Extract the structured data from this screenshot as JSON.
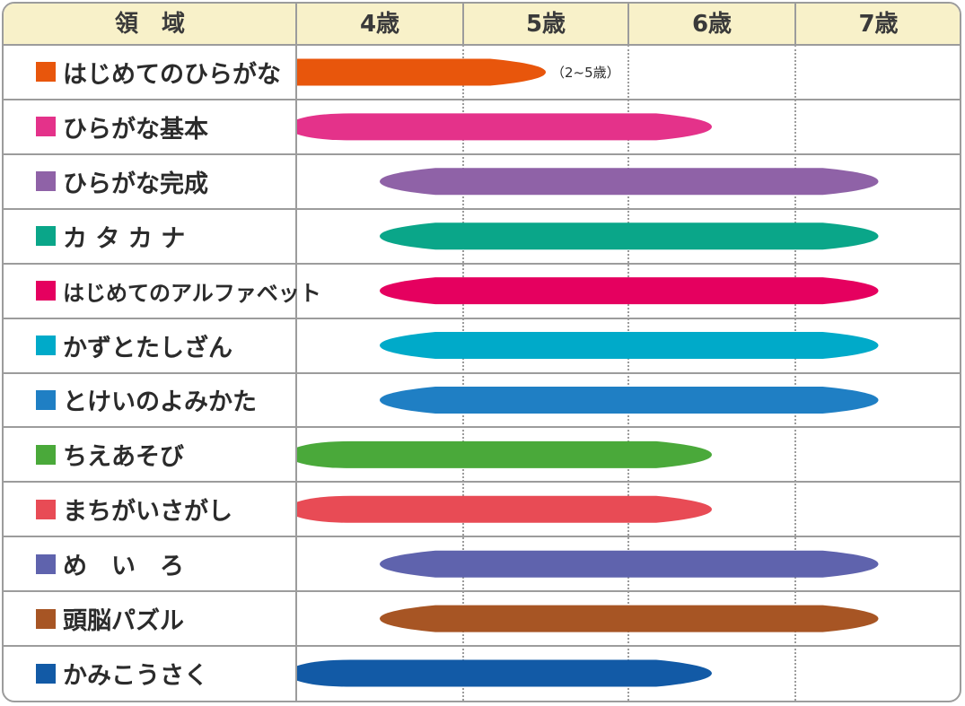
{
  "chart_data": {
    "type": "bar",
    "header": {
      "category_label": "領　域",
      "columns": [
        "4歳",
        "5歳",
        "6歳",
        "7歳"
      ]
    },
    "age_axis_range": [
      3.5,
      7.5
    ],
    "series": [
      {
        "name": "はじめてのひらがな",
        "start": 3.5,
        "end": 5.0,
        "color": "#e8560c",
        "note": "（2~5歳）"
      },
      {
        "name": "ひらがな基本",
        "start": 3.5,
        "end": 6.0,
        "color": "#e4328a"
      },
      {
        "name": "ひらがな完成",
        "start": 4.0,
        "end": 7.0,
        "color": "#8f62a7"
      },
      {
        "name": "カ タ カ ナ",
        "start": 4.0,
        "end": 7.0,
        "color": "#0aa689"
      },
      {
        "name": "はじめてのアルファベット",
        "start": 4.0,
        "end": 7.0,
        "color": "#e5005f"
      },
      {
        "name": "かずとたしざん",
        "start": 4.0,
        "end": 7.0,
        "color": "#00aac9"
      },
      {
        "name": "とけいのよみかた",
        "start": 4.0,
        "end": 7.0,
        "color": "#1f7fc4"
      },
      {
        "name": "ちえあそび",
        "start": 3.5,
        "end": 6.0,
        "color": "#4aa93a"
      },
      {
        "name": "まちがいさがし",
        "start": 3.5,
        "end": 6.0,
        "color": "#e84b55"
      },
      {
        "name": "め　い　ろ",
        "start": 4.0,
        "end": 7.0,
        "color": "#5f63ad"
      },
      {
        "name": "頭脳パズル",
        "start": 4.0,
        "end": 7.0,
        "color": "#a75524"
      },
      {
        "name": "かみこうさく",
        "start": 3.5,
        "end": 6.0,
        "color": "#125aa6"
      }
    ]
  }
}
